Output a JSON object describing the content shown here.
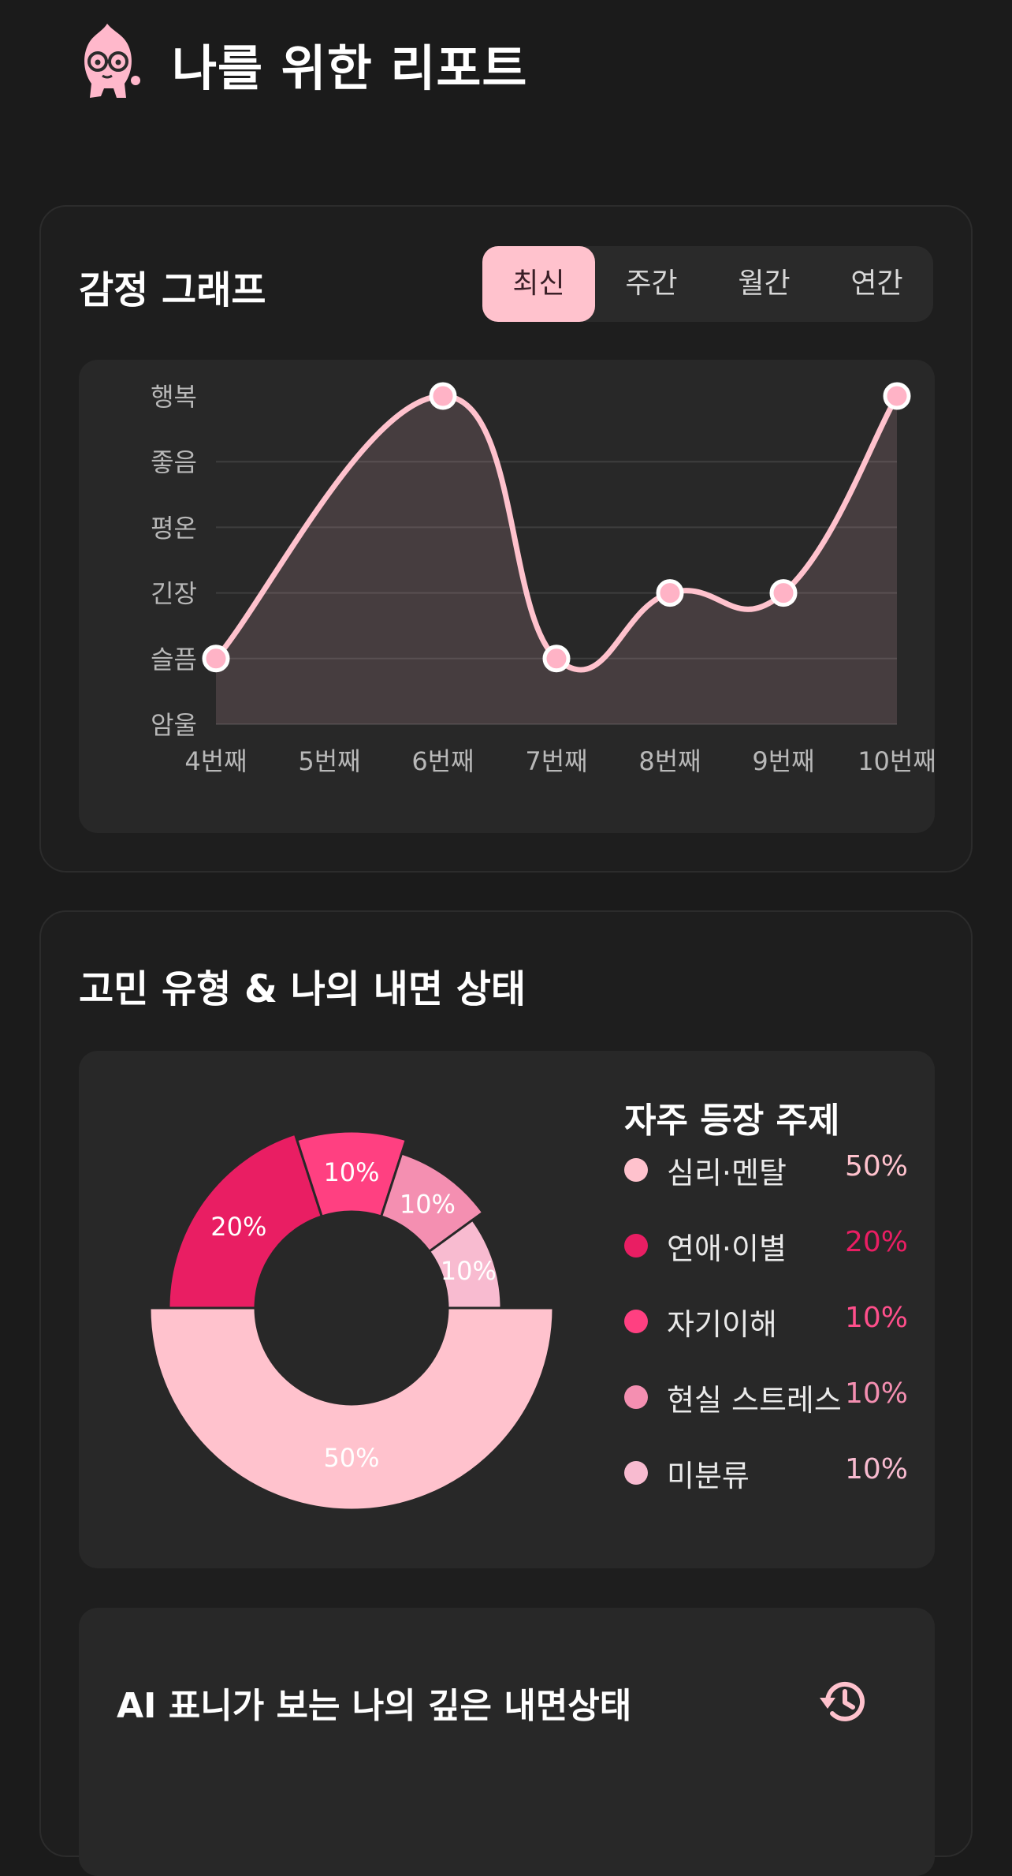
{
  "header": {
    "title": "나를 위한 리포트",
    "mascot_icon": "pink-character-icon"
  },
  "emotion_card": {
    "title": "감정 그래프",
    "tabs": [
      {
        "label": "최신",
        "active": true
      },
      {
        "label": "주간",
        "active": false
      },
      {
        "label": "월간",
        "active": false
      },
      {
        "label": "연간",
        "active": false
      }
    ]
  },
  "chart_data": [
    {
      "type": "line",
      "title": "",
      "x": [
        "4번째",
        "5번째",
        "6번째",
        "7번째",
        "8번째",
        "9번째",
        "10번째"
      ],
      "y_categories": [
        "암울",
        "슬픔",
        "긴장",
        "평온",
        "좋음",
        "행복"
      ],
      "series": [
        {
          "values": [
            "슬픔",
            null,
            "행복",
            "슬픔",
            "긴장",
            "긴장",
            "행복"
          ]
        }
      ],
      "grid": true,
      "area_fill": true,
      "line_color": "#ffc2cd"
    },
    {
      "type": "pie",
      "style": "donut",
      "labels": [
        "심리·멘탈",
        "연애·이별",
        "자기이해",
        "현실 스트레스",
        "미분류"
      ],
      "values": [
        50,
        20,
        10,
        10,
        10
      ],
      "colors": [
        "#ffc2cd",
        "#e91e63",
        "#ff4081",
        "#f48fb1",
        "#f8bbd0"
      ]
    }
  ],
  "concern_card": {
    "title": "고민 유형 & 나의 내면 상태",
    "legend_title": "자주 등장 주제",
    "legend": [
      {
        "label": "심리·멘탈",
        "value": "50%",
        "color": "#ffc2cd",
        "text_color": "#ffc2cd"
      },
      {
        "label": "연애·이별",
        "value": "20%",
        "color": "#e91e63",
        "text_color": "#e91e63"
      },
      {
        "label": "자기이해",
        "value": "10%",
        "color": "#ff4081",
        "text_color": "#ff4f8b"
      },
      {
        "label": "현실 스트레스",
        "value": "10%",
        "color": "#f48fb1",
        "text_color": "#f48fb1"
      },
      {
        "label": "미분류",
        "value": "10%",
        "color": "#f8bbd0",
        "text_color": "#f8bbd0"
      }
    ]
  },
  "ai_section": {
    "title": "AI 표니가 보는 나의 깊은 내면상태",
    "icon": "history-icon"
  }
}
